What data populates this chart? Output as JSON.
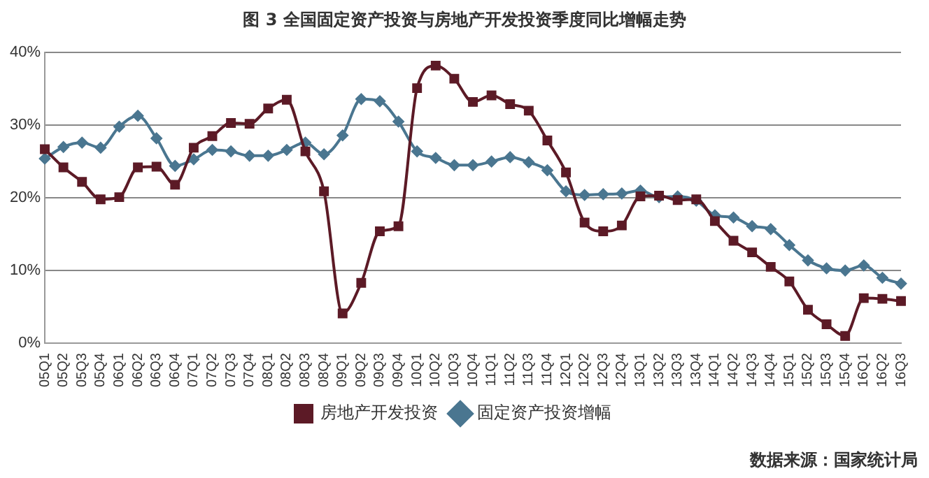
{
  "chart_data": {
    "type": "line",
    "title": "图 3  全国固定资产投资与房地产开发投资季度同比增幅走势",
    "categories": [
      "05Q1",
      "05Q2",
      "05Q3",
      "05Q4",
      "06Q1",
      "06Q2",
      "06Q3",
      "06Q4",
      "07Q1",
      "07Q2",
      "07Q3",
      "07Q4",
      "08Q1",
      "08Q2",
      "08Q3",
      "08Q4",
      "09Q1",
      "09Q2",
      "09Q3",
      "09Q4",
      "10Q1",
      "10Q2",
      "10Q3",
      "10Q4",
      "11Q1",
      "11Q2",
      "11Q3",
      "11Q4",
      "12Q1",
      "12Q2",
      "12Q3",
      "12Q4",
      "13Q1",
      "13Q2",
      "13Q3",
      "13Q4",
      "14Q1",
      "14Q2",
      "14Q3",
      "14Q4",
      "15Q1",
      "15Q2",
      "15Q3",
      "15Q4",
      "16Q1",
      "16Q2",
      "16Q3"
    ],
    "series": [
      {
        "name": "固定资产投资增幅",
        "color": "#4a7690",
        "marker": "diamond",
        "values": [
          25.4,
          27.0,
          27.6,
          26.9,
          29.8,
          31.3,
          28.2,
          24.4,
          25.3,
          26.6,
          26.4,
          25.8,
          25.8,
          26.6,
          27.6,
          26.0,
          28.6,
          33.6,
          33.3,
          30.5,
          26.4,
          25.5,
          24.5,
          24.5,
          25.0,
          25.6,
          24.9,
          23.8,
          20.9,
          20.4,
          20.5,
          20.6,
          21.0,
          20.1,
          20.2,
          19.6,
          17.6,
          17.3,
          16.1,
          15.7,
          13.5,
          11.4,
          10.3,
          10.0,
          10.7,
          9.0,
          8.2
        ]
      },
      {
        "name": "房地产开发投资",
        "color": "#5c1a26",
        "marker": "square",
        "values": [
          26.7,
          24.2,
          22.2,
          19.8,
          20.1,
          24.2,
          24.3,
          21.8,
          26.9,
          28.5,
          30.3,
          30.2,
          32.3,
          33.5,
          26.4,
          20.9,
          4.1,
          8.3,
          15.4,
          16.1,
          35.1,
          38.2,
          36.4,
          33.2,
          34.1,
          32.9,
          32.0,
          27.9,
          23.5,
          16.6,
          15.4,
          16.2,
          20.2,
          20.3,
          19.7,
          19.8,
          16.8,
          14.1,
          12.5,
          10.5,
          8.5,
          4.6,
          2.6,
          1.0,
          6.2,
          6.1,
          5.8
        ]
      }
    ],
    "ylim": [
      0,
      40
    ],
    "yticks": [
      {
        "value": 0,
        "label": "0%"
      },
      {
        "value": 10,
        "label": "10%"
      },
      {
        "value": 20,
        "label": "20%"
      },
      {
        "value": 30,
        "label": "30%"
      },
      {
        "value": 40,
        "label": "40%"
      }
    ],
    "grid": "y",
    "legend": "bottom",
    "line_style": "solid",
    "annotations": [
      "数据来源：国家统计局"
    ]
  }
}
